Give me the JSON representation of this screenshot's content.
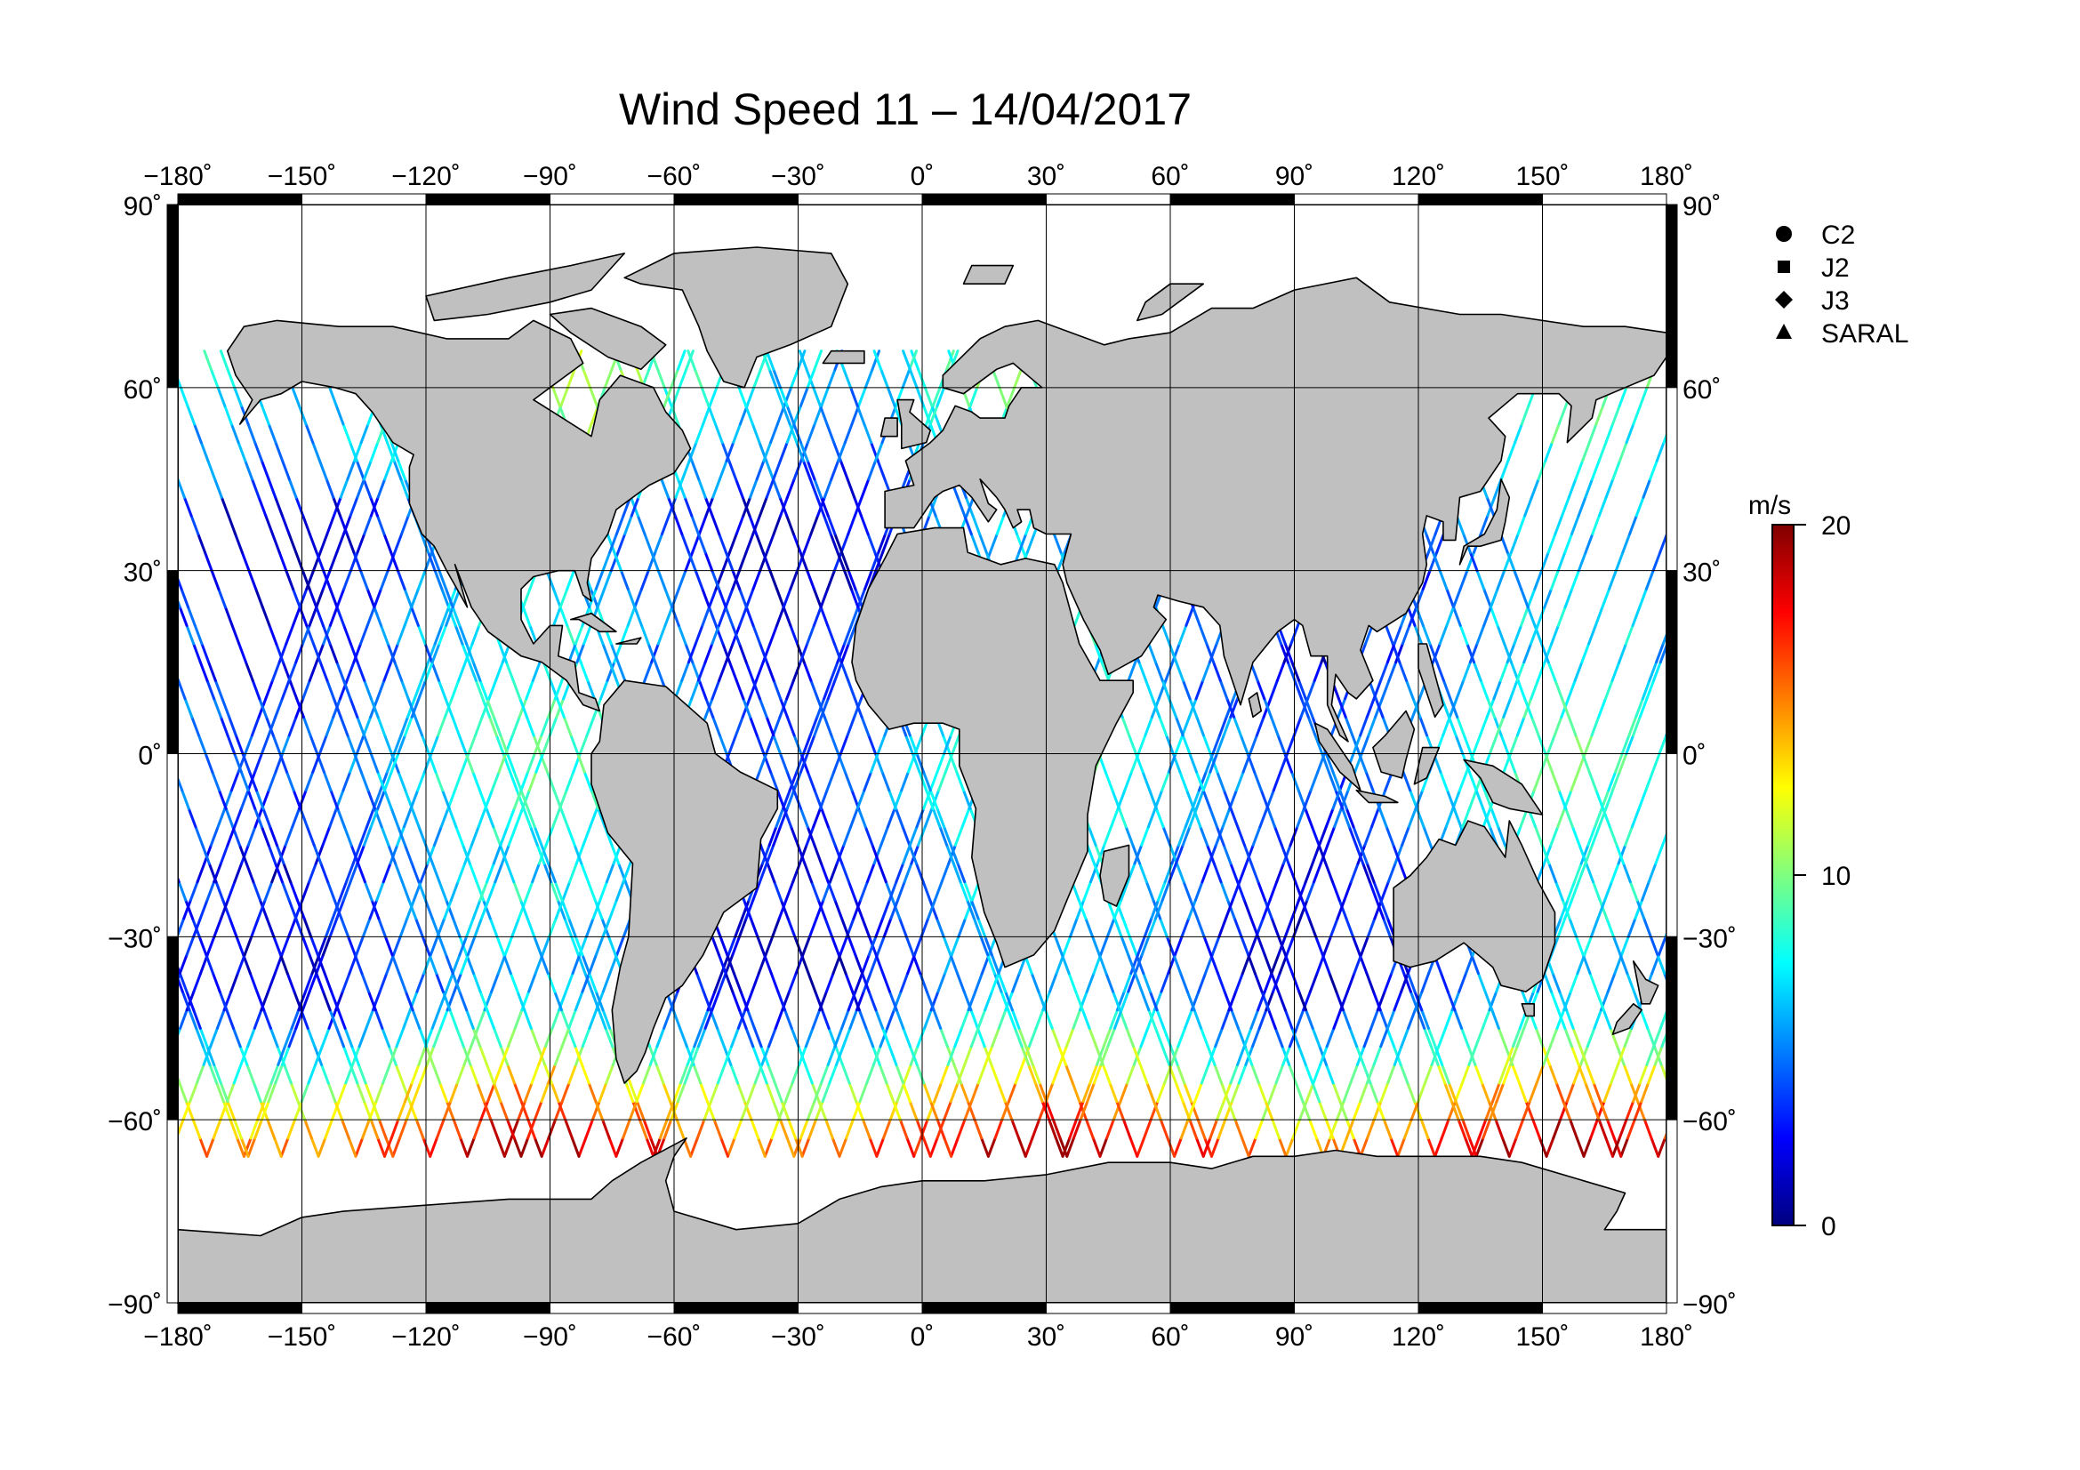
{
  "title": "Wind Speed 11 – 14/04/2017",
  "map": {
    "projection": "plate-carree",
    "lon_range": [
      -180,
      180
    ],
    "lat_range": [
      -90,
      90
    ],
    "grid_step_lon": 30,
    "grid_step_lat": 30,
    "grid": true,
    "land_color": "#c0c0c0",
    "ocean_color": "#ffffff",
    "lon_ticks": [
      "−180˚",
      "−150˚",
      "−120˚",
      "−90˚",
      "−60˚",
      "−30˚",
      "0˚",
      "30˚",
      "60˚",
      "90˚",
      "120˚",
      "150˚",
      "180˚"
    ],
    "lat_ticks": [
      "90˚",
      "60˚",
      "30˚",
      "0˚",
      "−30˚",
      "−60˚",
      "−90˚"
    ]
  },
  "legend": {
    "placement": "top-right",
    "items": [
      {
        "label": "C2",
        "marker": "circle"
      },
      {
        "label": "J2",
        "marker": "square"
      },
      {
        "label": "J3",
        "marker": "diamond"
      },
      {
        "label": "SARAL",
        "marker": "triangle"
      }
    ]
  },
  "colorbar": {
    "unit": "m/s",
    "min": 0,
    "max": 20,
    "tick_labels": [
      "20",
      "10",
      "0"
    ],
    "tick_values": [
      20,
      10,
      0
    ],
    "colors": [
      "#00007f",
      "#0000ff",
      "#007fff",
      "#00ffff",
      "#7fff7f",
      "#ffff00",
      "#ff7f00",
      "#ff0000",
      "#7f0000"
    ]
  }
}
